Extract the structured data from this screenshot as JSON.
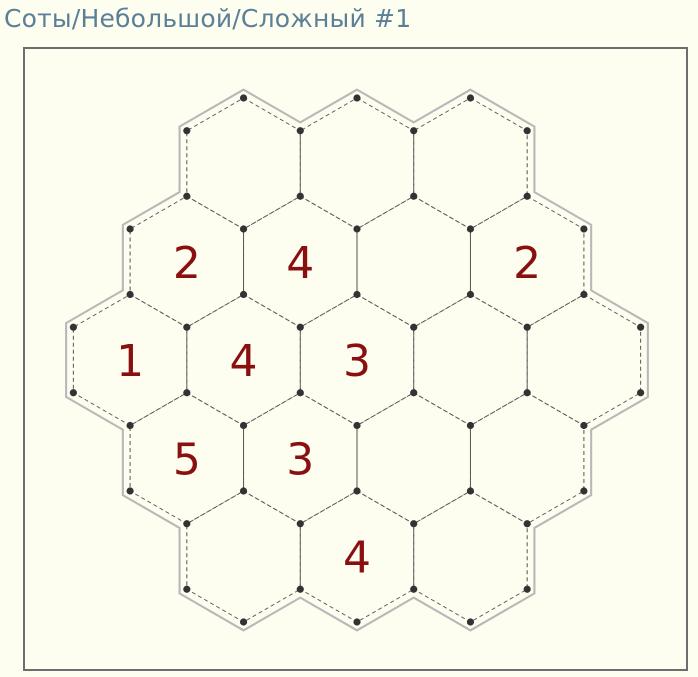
{
  "title": "Соты/Небольшой/Сложный #1",
  "colors": {
    "title": "#5b7f97",
    "number": "#8a1010",
    "dot": "#333333",
    "dashed_line": "#555555",
    "outer_outline": "#b8b8b8",
    "background": "#fdfdf0"
  },
  "board": {
    "rows": [
      {
        "cells": [
          "",
          "",
          ""
        ]
      },
      {
        "cells": [
          "2",
          "4",
          "",
          "2"
        ]
      },
      {
        "cells": [
          "1",
          "4",
          "3",
          "",
          ""
        ]
      },
      {
        "cells": [
          "5",
          "3",
          "",
          ""
        ]
      },
      {
        "cells": [
          "",
          "4",
          ""
        ]
      }
    ]
  }
}
